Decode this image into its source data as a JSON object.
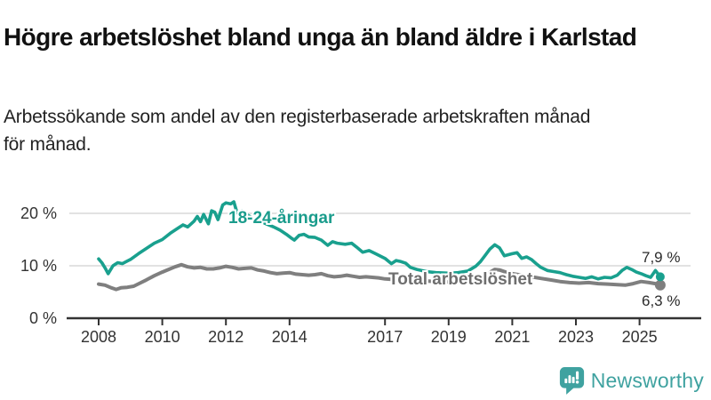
{
  "header": {
    "title": "Högre arbetslöshet bland unga än bland äldre i Karlstad",
    "subtitle_lines": [
      "Arbetssökande som andel av den registerbaserade arbetskraften månad",
      "för månad."
    ]
  },
  "chart_data": {
    "type": "line",
    "x_unit": "year",
    "y_unit": "percent",
    "xlim": [
      2007.0,
      2026.9
    ],
    "ylim": [
      0,
      23.5
    ],
    "grid": "horizontal",
    "y_ticks": [
      {
        "value": 0,
        "label": "0 %"
      },
      {
        "value": 10,
        "label": "10 %"
      },
      {
        "value": 20,
        "label": "20 %"
      }
    ],
    "x_ticks": [
      {
        "value": 2008,
        "label": "2008"
      },
      {
        "value": 2010,
        "label": "2010"
      },
      {
        "value": 2012,
        "label": "2012"
      },
      {
        "value": 2014,
        "label": "2014"
      },
      {
        "value": 2017,
        "label": "2017"
      },
      {
        "value": 2019,
        "label": "2019"
      },
      {
        "value": 2021,
        "label": "2021"
      },
      {
        "value": 2023,
        "label": "2023"
      },
      {
        "value": 2025,
        "label": "2025"
      }
    ],
    "series": [
      {
        "name": "18-24-åringar",
        "color": "#19A08E",
        "line_width": 3.6,
        "dot_radius": 5,
        "end_label": "7,9 %",
        "points": [
          [
            2008.0,
            11.3
          ],
          [
            2008.1,
            10.6
          ],
          [
            2008.2,
            9.6
          ],
          [
            2008.3,
            8.5
          ],
          [
            2008.45,
            10.0
          ],
          [
            2008.6,
            10.6
          ],
          [
            2008.75,
            10.4
          ],
          [
            2008.9,
            10.9
          ],
          [
            2009.0,
            11.2
          ],
          [
            2009.25,
            12.3
          ],
          [
            2009.5,
            13.3
          ],
          [
            2009.75,
            14.3
          ],
          [
            2010.0,
            15.0
          ],
          [
            2010.25,
            16.2
          ],
          [
            2010.5,
            17.2
          ],
          [
            2010.65,
            17.8
          ],
          [
            2010.8,
            17.4
          ],
          [
            2011.0,
            18.5
          ],
          [
            2011.1,
            19.4
          ],
          [
            2011.2,
            18.4
          ],
          [
            2011.3,
            19.8
          ],
          [
            2011.45,
            18.0
          ],
          [
            2011.55,
            20.5
          ],
          [
            2011.65,
            20.2
          ],
          [
            2011.75,
            18.8
          ],
          [
            2011.9,
            21.6
          ],
          [
            2012.0,
            22.0
          ],
          [
            2012.15,
            21.8
          ],
          [
            2012.25,
            22.2
          ],
          [
            2012.35,
            20.1
          ],
          [
            2012.5,
            20.5
          ],
          [
            2012.7,
            19.6
          ],
          [
            2012.9,
            18.9
          ],
          [
            2013.1,
            18.4
          ],
          [
            2013.3,
            17.9
          ],
          [
            2013.5,
            17.4
          ],
          [
            2013.7,
            16.8
          ],
          [
            2013.9,
            16.0
          ],
          [
            2014.05,
            15.3
          ],
          [
            2014.15,
            14.9
          ],
          [
            2014.3,
            15.8
          ],
          [
            2014.45,
            16.0
          ],
          [
            2014.6,
            15.5
          ],
          [
            2014.8,
            15.4
          ],
          [
            2015.0,
            14.9
          ],
          [
            2015.2,
            13.9
          ],
          [
            2015.35,
            14.6
          ],
          [
            2015.5,
            14.3
          ],
          [
            2015.75,
            14.1
          ],
          [
            2015.95,
            14.3
          ],
          [
            2016.1,
            13.6
          ],
          [
            2016.3,
            12.6
          ],
          [
            2016.5,
            12.9
          ],
          [
            2016.7,
            12.3
          ],
          [
            2017.0,
            11.4
          ],
          [
            2017.2,
            10.4
          ],
          [
            2017.35,
            11.0
          ],
          [
            2017.5,
            10.8
          ],
          [
            2017.65,
            10.5
          ],
          [
            2017.8,
            9.7
          ],
          [
            2018.0,
            9.3
          ],
          [
            2018.3,
            8.9
          ],
          [
            2018.6,
            8.7
          ],
          [
            2019.0,
            8.6
          ],
          [
            2019.3,
            8.7
          ],
          [
            2019.6,
            9.0
          ],
          [
            2019.85,
            9.9
          ],
          [
            2020.0,
            10.8
          ],
          [
            2020.15,
            12.0
          ],
          [
            2020.3,
            13.2
          ],
          [
            2020.45,
            14.0
          ],
          [
            2020.6,
            13.4
          ],
          [
            2020.75,
            11.9
          ],
          [
            2021.0,
            12.3
          ],
          [
            2021.15,
            12.5
          ],
          [
            2021.3,
            11.4
          ],
          [
            2021.45,
            11.7
          ],
          [
            2021.6,
            11.2
          ],
          [
            2021.75,
            10.4
          ],
          [
            2021.9,
            9.7
          ],
          [
            2022.1,
            9.1
          ],
          [
            2022.3,
            8.9
          ],
          [
            2022.5,
            8.7
          ],
          [
            2022.7,
            8.3
          ],
          [
            2022.9,
            8.0
          ],
          [
            2023.1,
            7.8
          ],
          [
            2023.3,
            7.6
          ],
          [
            2023.5,
            7.9
          ],
          [
            2023.7,
            7.5
          ],
          [
            2023.9,
            7.8
          ],
          [
            2024.1,
            7.7
          ],
          [
            2024.3,
            8.2
          ],
          [
            2024.45,
            9.1
          ],
          [
            2024.6,
            9.7
          ],
          [
            2024.75,
            9.3
          ],
          [
            2024.9,
            8.8
          ],
          [
            2025.05,
            8.5
          ],
          [
            2025.2,
            8.1
          ],
          [
            2025.35,
            7.8
          ],
          [
            2025.5,
            9.1
          ],
          [
            2025.65,
            7.9
          ]
        ]
      },
      {
        "name": "Total arbetslöshet",
        "color": "#7F7F7F",
        "line_width": 4,
        "dot_radius": 6,
        "end_label": "6,3 %",
        "points": [
          [
            2008.0,
            6.5
          ],
          [
            2008.2,
            6.3
          ],
          [
            2008.4,
            5.8
          ],
          [
            2008.55,
            5.5
          ],
          [
            2008.7,
            5.8
          ],
          [
            2008.9,
            5.9
          ],
          [
            2009.1,
            6.1
          ],
          [
            2009.3,
            6.7
          ],
          [
            2009.5,
            7.3
          ],
          [
            2009.75,
            8.1
          ],
          [
            2010.0,
            8.8
          ],
          [
            2010.2,
            9.3
          ],
          [
            2010.4,
            9.8
          ],
          [
            2010.6,
            10.2
          ],
          [
            2010.8,
            9.8
          ],
          [
            2011.0,
            9.6
          ],
          [
            2011.2,
            9.7
          ],
          [
            2011.4,
            9.4
          ],
          [
            2011.6,
            9.4
          ],
          [
            2011.8,
            9.6
          ],
          [
            2012.0,
            9.9
          ],
          [
            2012.2,
            9.7
          ],
          [
            2012.4,
            9.4
          ],
          [
            2012.6,
            9.5
          ],
          [
            2012.8,
            9.6
          ],
          [
            2013.0,
            9.2
          ],
          [
            2013.2,
            9.0
          ],
          [
            2013.4,
            8.7
          ],
          [
            2013.6,
            8.5
          ],
          [
            2013.8,
            8.6
          ],
          [
            2014.0,
            8.7
          ],
          [
            2014.2,
            8.4
          ],
          [
            2014.4,
            8.3
          ],
          [
            2014.6,
            8.2
          ],
          [
            2014.8,
            8.3
          ],
          [
            2015.0,
            8.5
          ],
          [
            2015.2,
            8.1
          ],
          [
            2015.4,
            7.9
          ],
          [
            2015.6,
            8.0
          ],
          [
            2015.8,
            8.2
          ],
          [
            2016.0,
            8.0
          ],
          [
            2016.2,
            7.8
          ],
          [
            2016.4,
            7.9
          ],
          [
            2016.6,
            7.8
          ],
          [
            2016.8,
            7.7
          ],
          [
            2017.0,
            7.5
          ],
          [
            2017.2,
            7.4
          ],
          [
            2017.4,
            7.5
          ],
          [
            2017.6,
            7.4
          ],
          [
            2017.8,
            7.3
          ],
          [
            2018.0,
            7.2
          ],
          [
            2018.3,
            7.1
          ],
          [
            2018.6,
            7.0
          ],
          [
            2019.0,
            6.9
          ],
          [
            2019.4,
            7.0
          ],
          [
            2019.7,
            7.1
          ],
          [
            2020.0,
            7.6
          ],
          [
            2020.2,
            8.4
          ],
          [
            2020.45,
            9.3
          ],
          [
            2020.6,
            9.2
          ],
          [
            2020.8,
            8.8
          ],
          [
            2021.0,
            8.5
          ],
          [
            2021.3,
            8.2
          ],
          [
            2021.6,
            7.9
          ],
          [
            2021.9,
            7.6
          ],
          [
            2022.2,
            7.3
          ],
          [
            2022.5,
            7.0
          ],
          [
            2022.8,
            6.8
          ],
          [
            2023.1,
            6.7
          ],
          [
            2023.4,
            6.8
          ],
          [
            2023.7,
            6.6
          ],
          [
            2024.0,
            6.5
          ],
          [
            2024.3,
            6.4
          ],
          [
            2024.55,
            6.3
          ],
          [
            2024.8,
            6.6
          ],
          [
            2025.05,
            7.0
          ],
          [
            2025.3,
            6.8
          ],
          [
            2025.5,
            6.6
          ],
          [
            2025.65,
            6.3
          ]
        ]
      }
    ]
  },
  "footer": {
    "brand": "Newsworthy",
    "brand_color": "#3FA2A0",
    "logo_icon": "bar-chart-speech-bubble"
  }
}
